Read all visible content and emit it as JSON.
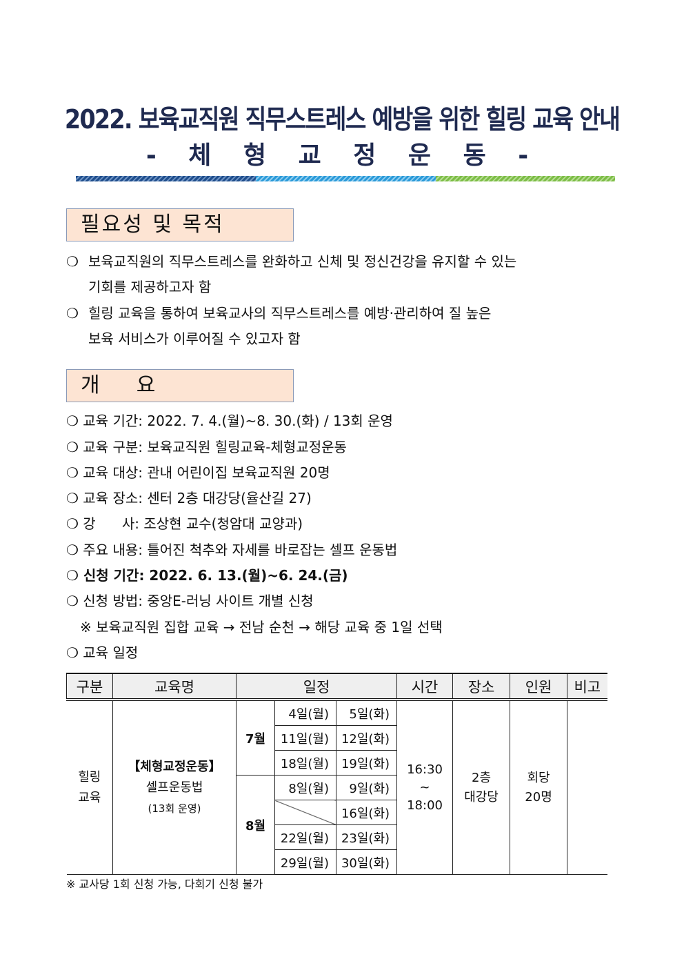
{
  "title": {
    "line1": "2022. 보육교직원 직무스트레스 예방을 위한 힐링 교육 안내",
    "line2": "- 체 형 교 정 운 동 -"
  },
  "colors": {
    "title": "#1f2a50",
    "bar": [
      "#1f4e8c",
      "#2a9ad8",
      "#7cbd45"
    ],
    "section_bg": "#fde4d3"
  },
  "section1": {
    "heading": "필요성 및 목적",
    "bullet": "❍",
    "items": [
      {
        "line1": "보육교직원의 직무스트레스를 완화하고 신체 및 정신건강을 유지할 수 있는",
        "line2": "기회를 제공하고자 함"
      },
      {
        "line1": "힐링 교육을 통하여 보육교사의 직무스트레스를 예방·관리하여 질 높은",
        "line2": "보육 서비스가 이루어질 수 있고자 함"
      }
    ]
  },
  "section2": {
    "heading": "개    요",
    "items": [
      "❍ 교육 기간: 2022. 7. 4.(월)~8. 30.(화) / 13회 운영",
      "❍ 교육 구분: 보육교직원 힐링교육-체형교정운동",
      "❍ 교육 대상: 관내 어린이집 보육교직원 20명",
      "❍ 교육 장소: 센터 2층 대강당(율산길 27)",
      "❍ 강      사: 조상현 교수(청암대 교양과)",
      "❍ 주요 내용: 틀어진 척추와 자세를 바로잡는 셀프 운동법",
      "❍ 신청 기간: 2022. 6. 13.(월)~6. 24.(금)",
      "❍ 신청 방법: 중앙E-러닝 사이트 개별 신청",
      "※ 보육교직원 집합 교육 → 전남 순천 → 해당 교육 중 1일 선택",
      "❍ 교육 일정"
    ]
  },
  "table": {
    "headers": [
      "구분",
      "교육명",
      "일정",
      "시간",
      "장소",
      "인원",
      "비고"
    ],
    "category": [
      "힐링",
      "교육"
    ],
    "course": {
      "name": "【체형교정운동】",
      "sub": "셀프운동법",
      "note": "(13회 운영)"
    },
    "months": [
      "7월",
      "8월"
    ],
    "dates": [
      [
        "4일(월)",
        "5일(화)"
      ],
      [
        "11일(월)",
        "12일(화)"
      ],
      [
        "18일(월)",
        "19일(화)"
      ],
      [
        "8일(월)",
        "9일(화)"
      ],
      [
        "",
        "16일(화)"
      ],
      [
        "22일(월)",
        "23일(화)"
      ],
      [
        "29일(월)",
        "30일(화)"
      ]
    ],
    "time": [
      "16:30",
      "~",
      "18:00"
    ],
    "place": [
      "2층",
      "대강당"
    ],
    "people": [
      "회당",
      "20명"
    ],
    "remark": ""
  },
  "footnote": "※ 교사당 1회 신청 가능, 다회기 신청 불가"
}
